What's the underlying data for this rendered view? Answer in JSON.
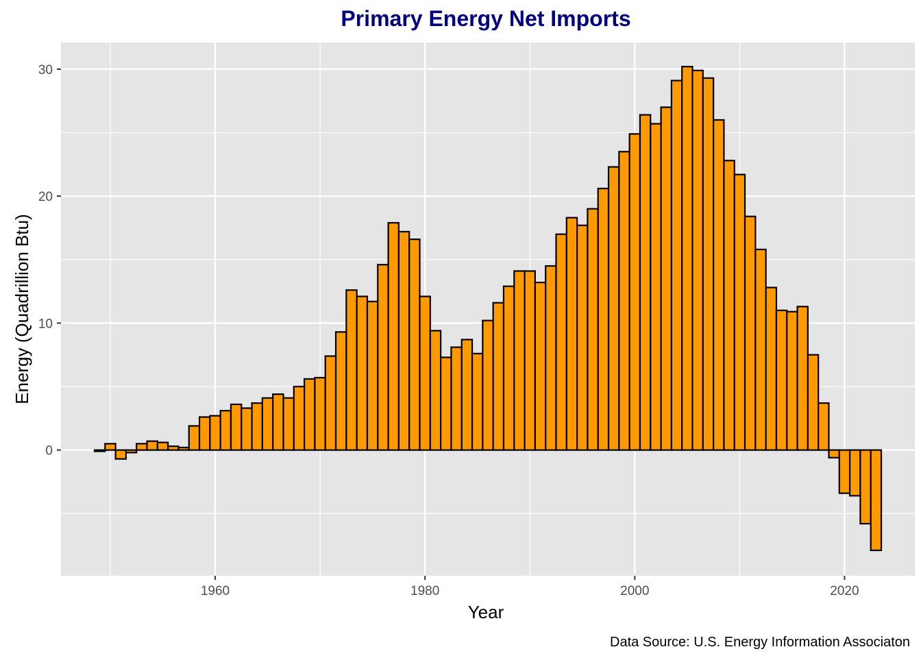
{
  "chart_data": {
    "type": "bar",
    "title": "Primary Energy Net Imports",
    "xlabel": "Year",
    "ylabel": "Energy (Quadrillion Btu)",
    "caption": "Data Source: U.S. Energy Information Associaton",
    "xlim": [
      1945.3,
      2026.7
    ],
    "ylim": [
      -9.9,
      32.1
    ],
    "x_ticks": [
      1960,
      1980,
      2000,
      2020
    ],
    "y_ticks": [
      0,
      10,
      20,
      30
    ],
    "x_minor_ticks": [
      1950,
      1970,
      1990,
      2010
    ],
    "y_minor_ticks": [
      -5,
      5,
      15,
      25
    ],
    "grid": true,
    "colors": {
      "bar_fill": "#FF9900",
      "bar_outline": "#000000",
      "panel_background": "#E5E5E5",
      "grid": "#FFFFFF",
      "title": "#000080"
    },
    "x": [
      1949,
      1950,
      1951,
      1952,
      1953,
      1954,
      1955,
      1956,
      1957,
      1958,
      1959,
      1960,
      1961,
      1962,
      1963,
      1964,
      1965,
      1966,
      1967,
      1968,
      1969,
      1970,
      1971,
      1972,
      1973,
      1974,
      1975,
      1976,
      1977,
      1978,
      1979,
      1980,
      1981,
      1982,
      1983,
      1984,
      1985,
      1986,
      1987,
      1988,
      1989,
      1990,
      1991,
      1992,
      1993,
      1994,
      1995,
      1996,
      1997,
      1998,
      1999,
      2000,
      2001,
      2002,
      2003,
      2004,
      2005,
      2006,
      2007,
      2008,
      2009,
      2010,
      2011,
      2012,
      2013,
      2014,
      2015,
      2016,
      2017,
      2018,
      2019,
      2020,
      2021,
      2022,
      2023
    ],
    "values": [
      -0.1,
      0.5,
      -0.7,
      -0.2,
      0.5,
      0.7,
      0.6,
      0.3,
      0.2,
      1.9,
      2.6,
      2.7,
      3.1,
      3.6,
      3.3,
      3.7,
      4.1,
      4.4,
      4.1,
      5.0,
      5.6,
      5.7,
      7.4,
      9.3,
      12.6,
      12.1,
      11.7,
      14.6,
      17.9,
      17.2,
      16.6,
      12.1,
      9.4,
      7.3,
      8.1,
      8.7,
      7.6,
      10.2,
      11.6,
      12.9,
      14.1,
      14.1,
      13.2,
      14.5,
      17.0,
      18.3,
      17.7,
      19.0,
      20.6,
      22.3,
      23.5,
      24.9,
      26.4,
      25.7,
      27.0,
      29.1,
      30.2,
      29.9,
      29.3,
      26.0,
      22.8,
      21.7,
      18.4,
      15.8,
      12.8,
      11.0,
      10.9,
      11.3,
      7.5,
      3.7,
      -0.6,
      -3.4,
      -3.6,
      -5.8,
      -7.9
    ]
  }
}
